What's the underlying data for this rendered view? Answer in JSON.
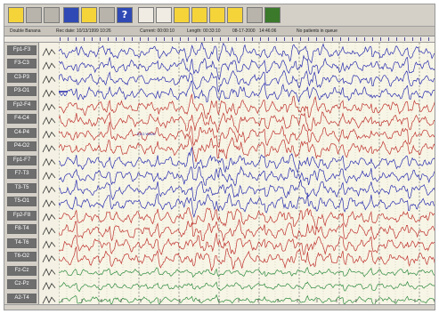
{
  "toolbar": {
    "buttons": [
      {
        "icon": "open-record-icon",
        "label": ""
      },
      {
        "icon": "montage-icon",
        "label": ""
      },
      {
        "icon": "filter-icon",
        "label": ""
      },
      {
        "icon": "data-icon",
        "label": ""
      },
      {
        "icon": "notebook-icon",
        "label": ""
      },
      {
        "icon": "list-icon",
        "label": ""
      },
      {
        "icon": "help-icon",
        "label": "?"
      },
      {
        "icon": "step-back-icon",
        "label": ""
      },
      {
        "icon": "step-forward-icon",
        "label": ""
      },
      {
        "icon": "page-first-icon",
        "label": ""
      },
      {
        "icon": "page-prev-icon",
        "label": ""
      },
      {
        "icon": "page-next-icon",
        "label": ""
      },
      {
        "icon": "page-last-icon",
        "label": ""
      },
      {
        "icon": "print-icon",
        "label": ""
      },
      {
        "icon": "event-icon",
        "label": ""
      }
    ]
  },
  "status": {
    "montage": "Double Banana",
    "rec_date": "Rec date: 10/13/1999 10:26",
    "current": "Current: 00:00:10",
    "length": "Length: 00:33:10",
    "date": "08-17-2000",
    "time": "14:46:06",
    "patient": "No patients in queue"
  },
  "channels": [
    {
      "label": "Fp1-F3",
      "group": "blue"
    },
    {
      "label": "F3-C3",
      "group": "blue"
    },
    {
      "label": "C3-P3",
      "group": "blue"
    },
    {
      "label": "P3-O1",
      "group": "blue"
    },
    {
      "label": "Fp2-F4",
      "group": "red"
    },
    {
      "label": "F4-C4",
      "group": "red"
    },
    {
      "label": "C4-P4",
      "group": "red"
    },
    {
      "label": "P4-O2",
      "group": "red"
    },
    {
      "label": "Fp1-F7",
      "group": "blue"
    },
    {
      "label": "F7-T3",
      "group": "blue"
    },
    {
      "label": "T3-T5",
      "group": "blue"
    },
    {
      "label": "T5-O1",
      "group": "blue"
    },
    {
      "label": "Fp2-F8",
      "group": "red"
    },
    {
      "label": "F8-T4",
      "group": "red"
    },
    {
      "label": "T4-T6",
      "group": "red"
    },
    {
      "label": "T6-O2",
      "group": "red"
    },
    {
      "label": "Fz-Cz",
      "group": "green"
    },
    {
      "label": "Cz-Pz",
      "group": "green"
    },
    {
      "label": "A2-T4",
      "group": "green"
    }
  ],
  "annotation_text": "EEG WAVE",
  "colors": {
    "blue": "#2b2fb0",
    "red": "#c0332f",
    "green": "#2e8b3e",
    "grid_major": "#6a6a6a",
    "grid_minor": "#b8b4a0"
  }
}
